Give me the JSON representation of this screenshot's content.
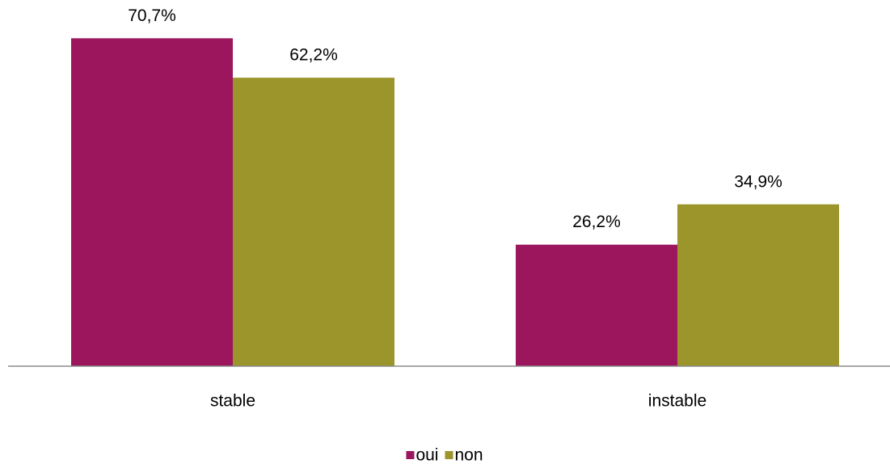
{
  "chart_data": {
    "type": "bar",
    "categories": [
      "stable",
      "instable"
    ],
    "series": [
      {
        "name": "oui",
        "color": "#9b165d",
        "values": [
          70.7,
          26.2
        ],
        "value_labels": [
          "70,7%",
          "26,2%"
        ]
      },
      {
        "name": "non",
        "color": "#9b952c",
        "values": [
          62.2,
          34.9
        ],
        "value_labels": [
          "62,2%",
          "34,9%"
        ]
      }
    ],
    "ylim": [
      0,
      80
    ],
    "grid": false,
    "legend": "bottom"
  }
}
